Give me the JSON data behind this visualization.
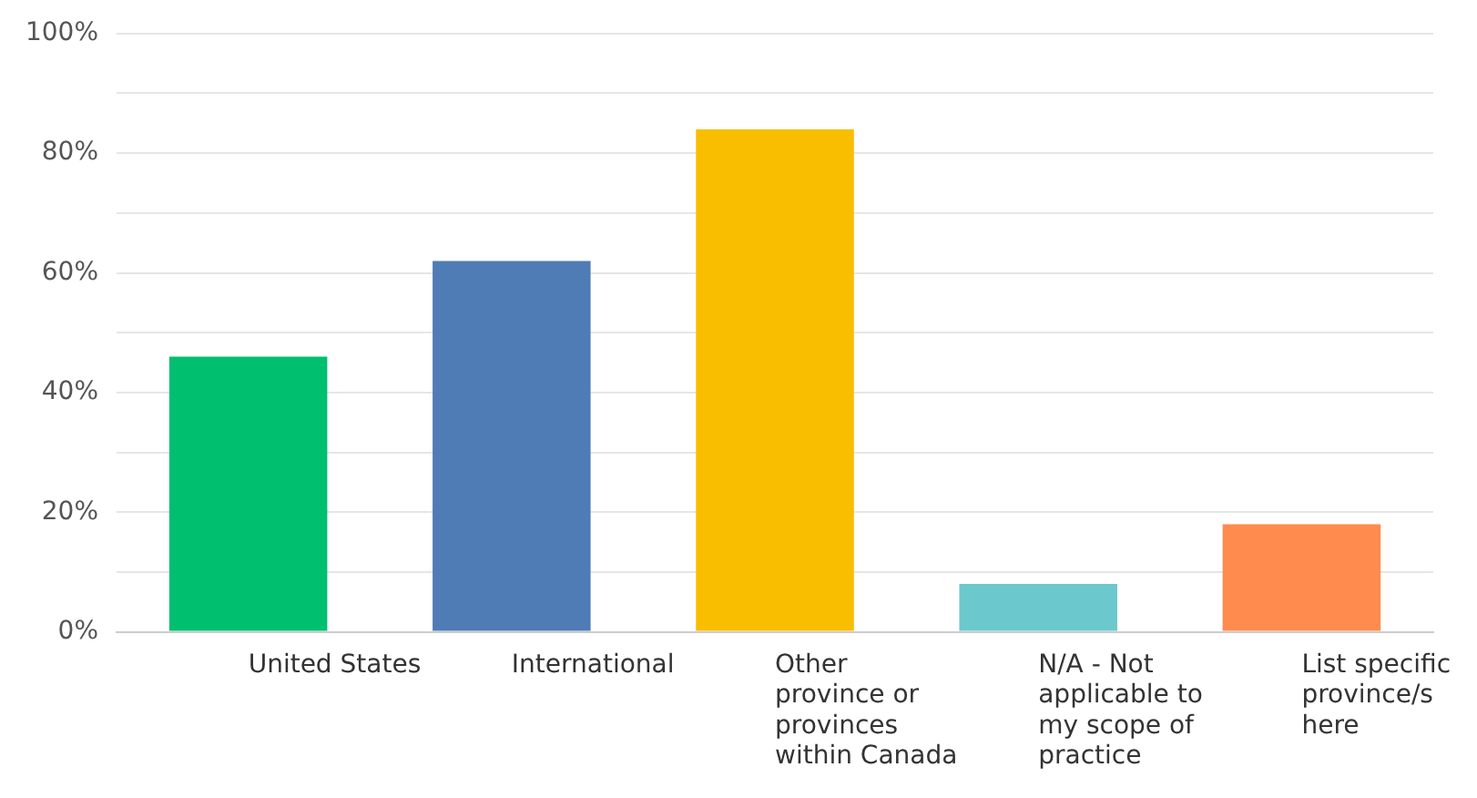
{
  "chart_data": {
    "type": "bar",
    "categories": [
      "United States",
      "International",
      "Other province or provinces within Canada",
      "N/A - Not applicable to my scope of practice",
      "List specific province/s here"
    ],
    "values": [
      46,
      62,
      84,
      8,
      18
    ],
    "colors": [
      "#00bf6f",
      "#507cb6",
      "#f9be00",
      "#6bc8cd",
      "#ff8b4f"
    ],
    "ylim": [
      0,
      100
    ],
    "yticks": [
      {
        "value": 0,
        "label": "0%"
      },
      {
        "value": 10,
        "label": null
      },
      {
        "value": 20,
        "label": "20%"
      },
      {
        "value": 30,
        "label": null
      },
      {
        "value": 40,
        "label": "40%"
      },
      {
        "value": 50,
        "label": null
      },
      {
        "value": 60,
        "label": "60%"
      },
      {
        "value": 70,
        "label": null
      },
      {
        "value": 80,
        "label": "80%"
      },
      {
        "value": 90,
        "label": null
      },
      {
        "value": 100,
        "label": "100%"
      }
    ],
    "grid": "y",
    "legend": false
  }
}
